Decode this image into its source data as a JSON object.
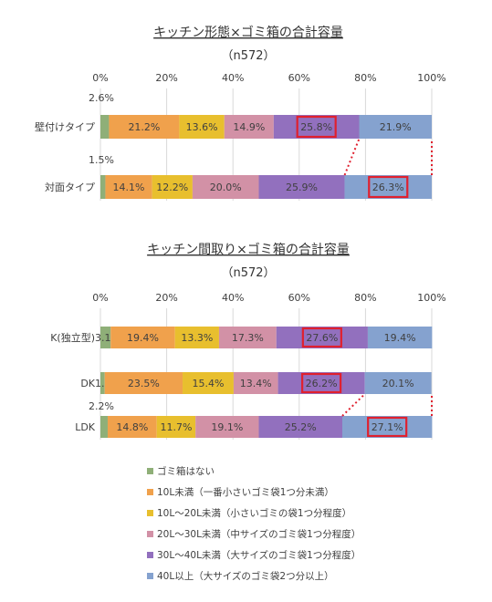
{
  "colors": {
    "none": "#8faf78",
    "under10": "#f0a14c",
    "10to20": "#e8bf2e",
    "20to30": "#d291a6",
    "30to40": "#9270be",
    "over40": "#85a2cf",
    "highlight": "#e0202e",
    "text": "#404040",
    "grid": "#d9d9d9"
  },
  "chart_data": [
    {
      "type": "bar",
      "orientation": "horizontal-stacked",
      "title": "キッチン形態×ゴミ箱の合計容量",
      "subtitle": "（n572）",
      "x_ticks": [
        "0%",
        "20%",
        "40%",
        "60%",
        "80%",
        "100%"
      ],
      "xlim": [
        0,
        100
      ],
      "categories": [
        "壁付けタイプ",
        "対面タイプ"
      ],
      "series": [
        {
          "name": "ゴミ箱はない",
          "key": "none",
          "values": [
            2.6,
            1.5
          ],
          "labels": [
            "2.6%",
            "1.5%"
          ]
        },
        {
          "name": "10L未満（一番小さいゴミ袋1つ分未満）",
          "key": "under10",
          "values": [
            21.2,
            14.1
          ],
          "labels": [
            "21.2%",
            "14.1%"
          ]
        },
        {
          "name": "10L～20L未満（小さいゴミの袋1つ分程度）",
          "key": "10to20",
          "values": [
            13.6,
            12.2
          ],
          "labels": [
            "13.6%",
            "12.2%"
          ]
        },
        {
          "name": "20L～30L未満（中サイズのゴミ袋1つ分程度）",
          "key": "20to30",
          "values": [
            14.9,
            20.0
          ],
          "labels": [
            "14.9%",
            "20.0%"
          ]
        },
        {
          "name": "30L～40L未満（大サイズのゴミ袋1つ分程度）",
          "key": "30to40",
          "values": [
            25.8,
            25.9
          ],
          "labels": [
            "25.8%",
            "25.9%"
          ]
        },
        {
          "name": "40L以上（大サイズのゴミ袋2つ分以上）",
          "key": "over40",
          "values": [
            21.9,
            26.3
          ],
          "labels": [
            "21.9%",
            "26.3%"
          ]
        }
      ],
      "highlights": [
        {
          "category": 0,
          "series": 4
        },
        {
          "category": 1,
          "series": 5
        }
      ]
    },
    {
      "type": "bar",
      "orientation": "horizontal-stacked",
      "title": "キッチン間取り×ゴミ箱の合計容量",
      "subtitle": "（n572）",
      "x_ticks": [
        "0%",
        "20%",
        "40%",
        "60%",
        "80%",
        "100%"
      ],
      "xlim": [
        0,
        100
      ],
      "categories": [
        "K(独立型)",
        "DK",
        "LDK"
      ],
      "series": [
        {
          "name": "ゴミ箱はない",
          "key": "none",
          "values": [
            3.1,
            1.3,
            2.2
          ],
          "labels": [
            "3.1%",
            "1.3%",
            "2.2%"
          ]
        },
        {
          "name": "10L未満（一番小さいゴミ袋1つ分未満）",
          "key": "under10",
          "values": [
            19.4,
            23.5,
            14.8
          ],
          "labels": [
            "19.4%",
            "23.5%",
            "14.8%"
          ]
        },
        {
          "name": "10L～20L未満（小さいゴミの袋1つ分程度）",
          "key": "10to20",
          "values": [
            13.3,
            15.4,
            11.7
          ],
          "labels": [
            "13.3%",
            "15.4%",
            "11.7%"
          ]
        },
        {
          "name": "20L～30L未満（中サイズのゴミ袋1つ分程度）",
          "key": "20to30",
          "values": [
            17.3,
            13.4,
            19.1
          ],
          "labels": [
            "17.3%",
            "13.4%",
            "19.1%"
          ]
        },
        {
          "name": "30L～40L未満（大サイズのゴミ袋1つ分程度）",
          "key": "30to40",
          "values": [
            27.6,
            26.2,
            25.2
          ],
          "labels": [
            "27.6%",
            "26.2%",
            "25.2%"
          ]
        },
        {
          "name": "40L以上（大サイズのゴミ袋2つ分以上）",
          "key": "over40",
          "values": [
            19.4,
            20.1,
            27.1
          ],
          "labels": [
            "19.4%",
            "20.1%",
            "27.1%"
          ]
        }
      ],
      "highlights": [
        {
          "category": 0,
          "series": 4
        },
        {
          "category": 1,
          "series": 4
        },
        {
          "category": 2,
          "series": 5
        }
      ]
    }
  ],
  "legend": {
    "items": [
      {
        "key": "none",
        "label": "ゴミ箱はない"
      },
      {
        "key": "under10",
        "label": "10L未満（一番小さいゴミ袋1つ分未満）"
      },
      {
        "key": "10to20",
        "label": "10L～20L未満（小さいゴミの袋1つ分程度）"
      },
      {
        "key": "20to30",
        "label": "20L～30L未満（中サイズのゴミ袋1つ分程度）"
      },
      {
        "key": "30to40",
        "label": "30L～40L未満（大サイズのゴミ袋1つ分程度）"
      },
      {
        "key": "over40",
        "label": "40L以上（大サイズのゴミ袋2つ分以上）"
      }
    ]
  }
}
